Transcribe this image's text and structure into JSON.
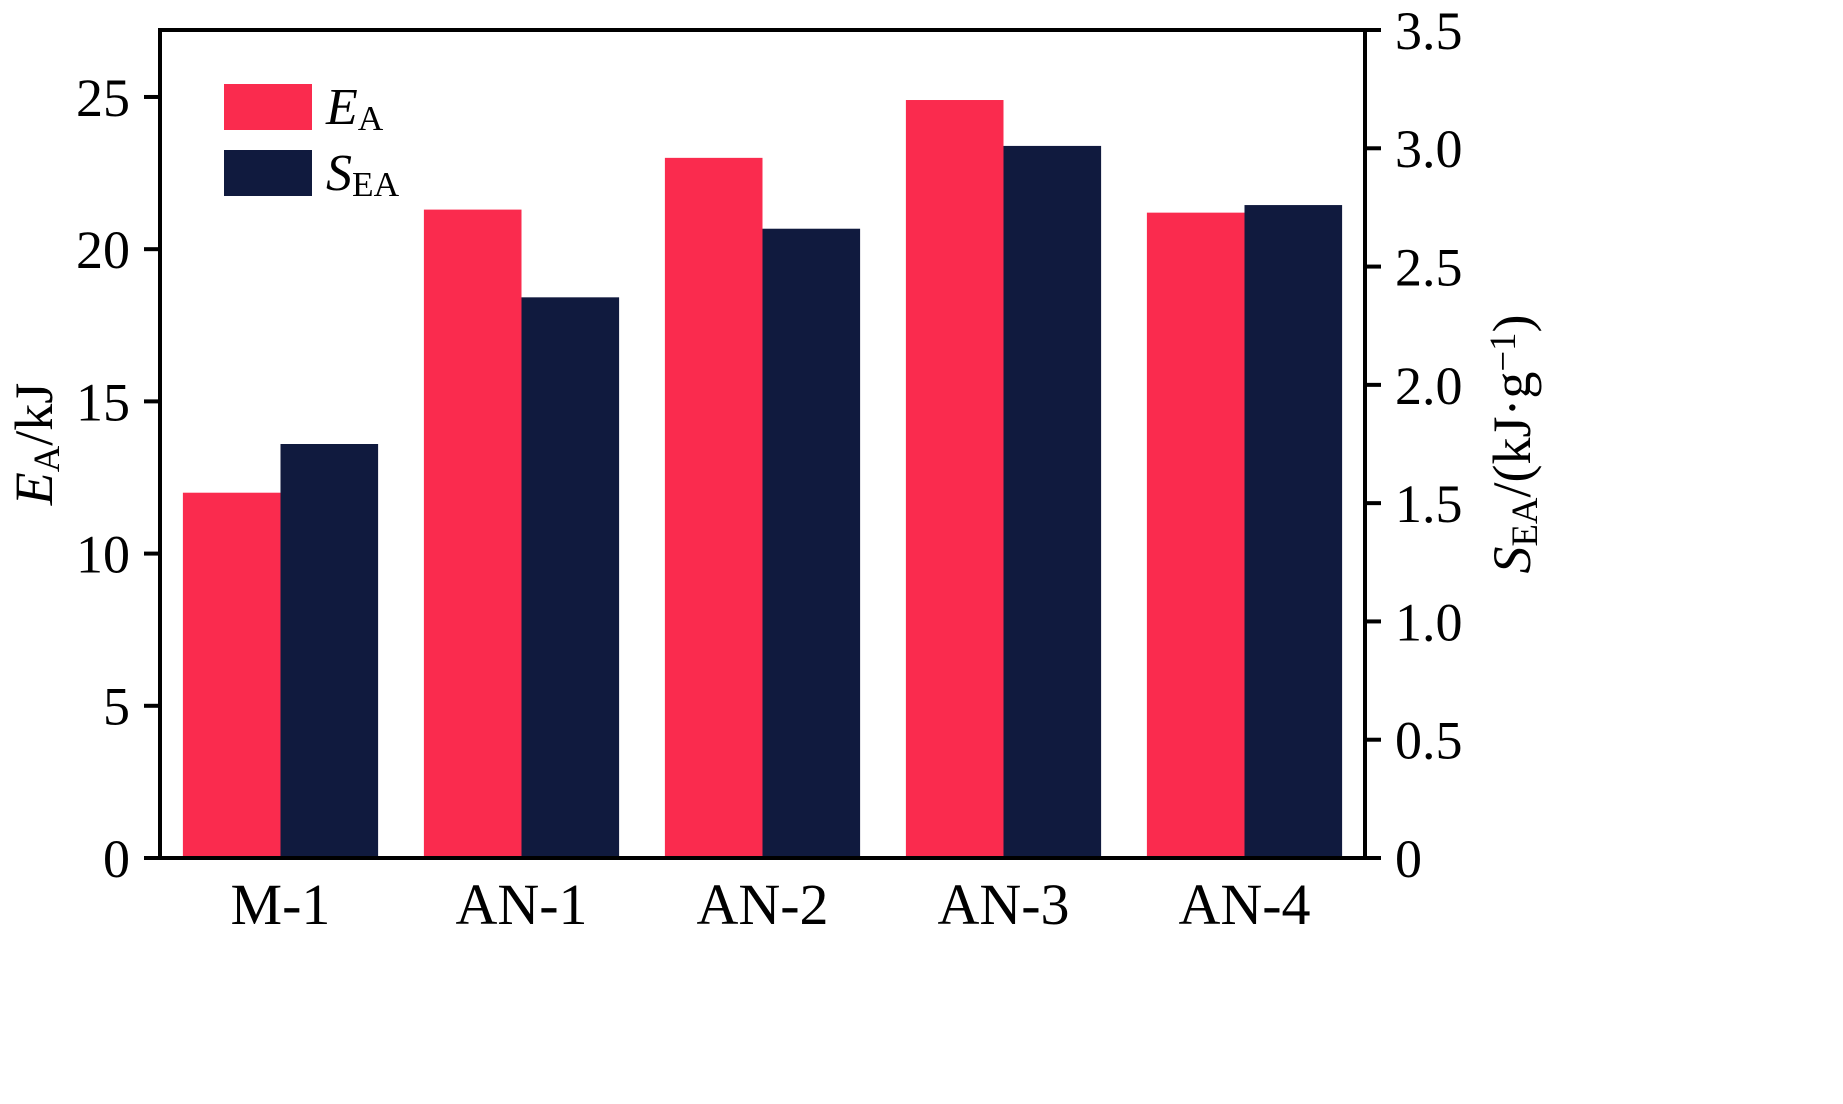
{
  "chart_data": {
    "type": "bar",
    "title": "",
    "categories": [
      "M-1",
      "AN-1",
      "AN-2",
      "AN-3",
      "AN-4"
    ],
    "series": [
      {
        "name": "E_A",
        "axis": "left",
        "color": "#FA2B4E",
        "values": [
          12.0,
          21.3,
          23.0,
          24.9,
          21.2
        ]
      },
      {
        "name": "S_EA",
        "axis": "right",
        "color": "#101A3E",
        "values": [
          1.75,
          2.37,
          2.66,
          3.01,
          2.76
        ]
      }
    ],
    "left_axis": {
      "label": "E_A/kJ",
      "label_parts": [
        {
          "text": "E",
          "italic": true
        },
        {
          "text": "A",
          "sub": true
        },
        {
          "text": "/kJ"
        }
      ],
      "tick_labels": [
        "0",
        "5",
        "10",
        "15",
        "20",
        "25"
      ],
      "tick_values": [
        0,
        5,
        10,
        15,
        20,
        25
      ],
      "ylim": [
        0,
        27.2
      ]
    },
    "right_axis": {
      "label": "S_EA/(kJ·g−1)",
      "label_parts": [
        {
          "text": "S",
          "italic": true
        },
        {
          "text": "EA",
          "sub": true
        },
        {
          "text": "/(kJ·g"
        },
        {
          "text": "−1",
          "sup": true
        },
        {
          "text": ")"
        }
      ],
      "tick_labels": [
        "0",
        "0.5",
        "1.0",
        "1.5",
        "2.0",
        "2.5",
        "3.0",
        "3.5"
      ],
      "tick_values": [
        0,
        0.5,
        1.0,
        1.5,
        2.0,
        2.5,
        3.0,
        3.5
      ],
      "ylim": [
        0,
        3.5
      ]
    },
    "legend": {
      "position": "top-left",
      "items": [
        {
          "label": "E_A",
          "color": "#FA2B4E",
          "parts": [
            {
              "text": "E",
              "italic": true
            },
            {
              "text": "A",
              "sub": true
            }
          ]
        },
        {
          "label": "S_EA",
          "color": "#101A3E",
          "parts": [
            {
              "text": "S",
              "italic": true
            },
            {
              "text": "EA",
              "sub": true
            }
          ]
        }
      ]
    },
    "grid": false,
    "colors": {
      "axis": "#000000",
      "background": "#ffffff"
    }
  }
}
